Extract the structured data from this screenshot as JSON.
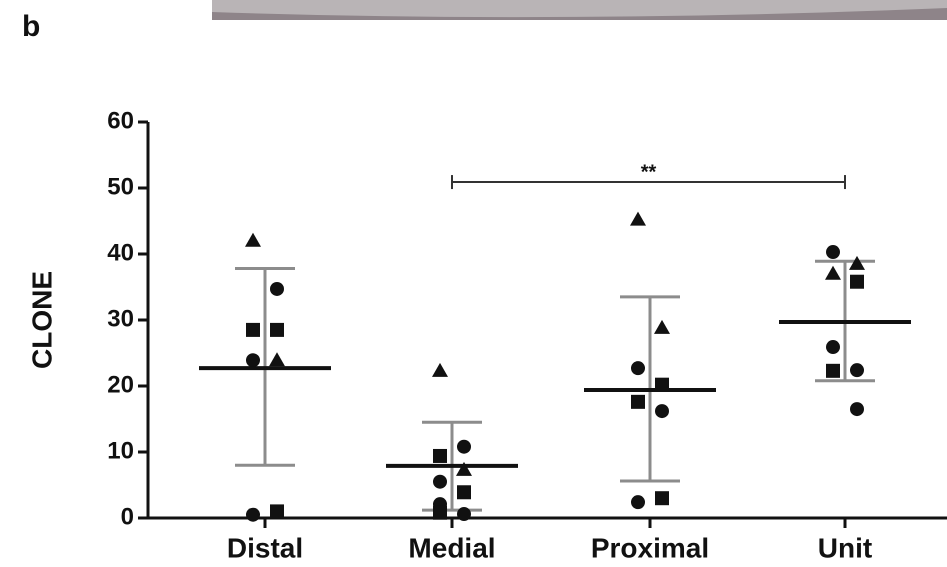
{
  "panel_label": "b",
  "chart_data": {
    "type": "dot_plot",
    "ylabel": "CLONE",
    "ylim": [
      0,
      60
    ],
    "yticks": [
      0,
      10,
      20,
      30,
      40,
      50,
      60
    ],
    "categories": [
      "Distal",
      "Medial",
      "Proximal",
      "Unit"
    ],
    "color": "#111111",
    "error_color": "#8c8c8c",
    "groups": [
      {
        "values": [
          42,
          34.7,
          28.5,
          28.5,
          23.9,
          23.9,
          0.5,
          1
        ],
        "markers": [
          "triangle",
          "circle",
          "square",
          "square",
          "circle",
          "triangle",
          "circle",
          "square"
        ],
        "mean": 22.7,
        "error_low": 8,
        "error_high": 37.8
      },
      {
        "values": [
          22.3,
          10.8,
          9.4,
          7.3,
          5.5,
          3.9,
          2.1,
          0.6,
          0.8
        ],
        "markers": [
          "triangle",
          "circle",
          "square",
          "triangle",
          "circle",
          "square",
          "circle",
          "circle",
          "square"
        ],
        "mean": 7.9,
        "error_low": 1.2,
        "error_high": 14.5
      },
      {
        "values": [
          45.2,
          28.8,
          22.7,
          20.2,
          17.6,
          16.2,
          2.4,
          3
        ],
        "markers": [
          "triangle",
          "triangle",
          "circle",
          "square",
          "square",
          "circle",
          "circle",
          "square"
        ],
        "mean": 19.4,
        "error_low": 5.6,
        "error_high": 33.5
      },
      {
        "values": [
          40.3,
          38.5,
          37,
          35.8,
          25.9,
          22.4,
          22.3,
          16.5
        ],
        "markers": [
          "circle",
          "triangle",
          "triangle",
          "square",
          "circle",
          "circle",
          "square",
          "circle"
        ],
        "mean": 29.7,
        "error_low": 20.8,
        "error_high": 38.9
      }
    ],
    "annotations": [
      {
        "text": "**",
        "from": 1,
        "to": 3,
        "y": 50.9
      }
    ]
  }
}
